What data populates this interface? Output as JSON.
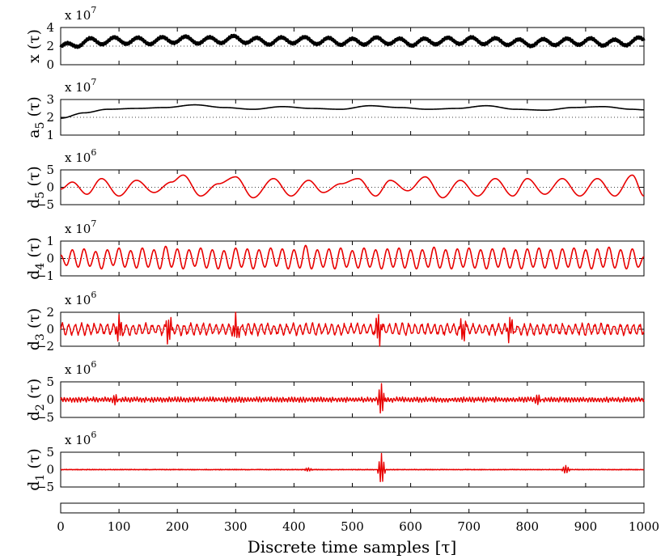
{
  "figure": {
    "xlabel": "Discrete time samples [τ]",
    "x_ticks": [
      "0",
      "100",
      "200",
      "300",
      "400",
      "500",
      "600",
      "700",
      "800",
      "900",
      "1000"
    ]
  },
  "chart_data": [
    {
      "type": "line",
      "ylabel": "x (τ)",
      "exponent": "x 10",
      "exponent_power": "7",
      "xlim": [
        0,
        1000
      ],
      "ylim": [
        0,
        4
      ],
      "yticks": [
        "4",
        "2",
        "0"
      ],
      "ytick_values": [
        4,
        2,
        0
      ],
      "dotted_ref": 2,
      "color": "#000000",
      "series": [
        {
          "x": [
            0,
            50,
            100,
            150,
            200,
            250,
            300,
            350,
            400,
            450,
            500,
            550,
            600,
            650,
            700,
            750,
            800,
            850,
            900,
            950,
            1000
          ],
          "y": [
            1.9,
            2.5,
            2.6,
            2.55,
            2.7,
            2.6,
            2.75,
            2.5,
            2.65,
            2.55,
            2.45,
            2.6,
            2.4,
            2.55,
            2.6,
            2.5,
            2.35,
            2.45,
            2.5,
            2.35,
            2.6
          ]
        }
      ]
    },
    {
      "type": "line",
      "ylabel": "a5 (τ)",
      "ylabel_main": "a",
      "ylabel_sub": "5",
      "ylabel_tail": " (τ)",
      "exponent": "x 10",
      "exponent_power": "7",
      "xlim": [
        0,
        1000
      ],
      "ylim": [
        1,
        3
      ],
      "yticks": [
        "3",
        "2",
        "1"
      ],
      "ytick_values": [
        3,
        2,
        1
      ],
      "dotted_ref": 2,
      "color": "#000000",
      "series": [
        {
          "x": [
            0,
            40,
            80,
            130,
            180,
            230,
            280,
            330,
            380,
            430,
            480,
            530,
            580,
            630,
            680,
            730,
            780,
            830,
            880,
            930,
            980,
            1000
          ],
          "y": [
            1.95,
            2.25,
            2.45,
            2.5,
            2.55,
            2.7,
            2.55,
            2.45,
            2.6,
            2.5,
            2.45,
            2.65,
            2.55,
            2.45,
            2.5,
            2.65,
            2.45,
            2.4,
            2.55,
            2.6,
            2.45,
            2.42
          ]
        }
      ]
    },
    {
      "type": "line",
      "ylabel": "d5 (τ)",
      "ylabel_main": "d",
      "ylabel_sub": "5",
      "ylabel_tail": " (τ)",
      "exponent": "x 10",
      "exponent_power": "6",
      "xlim": [
        0,
        1000
      ],
      "ylim": [
        -5,
        5
      ],
      "yticks": [
        "5",
        "0",
        "−5"
      ],
      "ytick_values": [
        5,
        0,
        -5
      ],
      "dotted_ref": 0,
      "color": "#e80000",
      "series": [
        {
          "x": [
            0,
            20,
            45,
            70,
            100,
            130,
            160,
            190,
            210,
            240,
            270,
            300,
            330,
            365,
            395,
            425,
            450,
            480,
            510,
            540,
            565,
            595,
            625,
            655,
            685,
            715,
            745,
            775,
            800,
            830,
            860,
            890,
            920,
            950,
            980,
            1000
          ],
          "y": [
            -0.5,
            1.5,
            -2,
            2.5,
            -2.5,
            2,
            -1.5,
            1.5,
            3.5,
            -2.5,
            1,
            3,
            -3,
            2.5,
            -2.5,
            2,
            -1.5,
            1,
            2.5,
            -2.5,
            2,
            -1,
            3,
            -3,
            2,
            -2.5,
            2.5,
            -2.5,
            2.5,
            -2,
            2.5,
            -2.5,
            2.5,
            -2.5,
            3.5,
            -2.5
          ]
        }
      ]
    },
    {
      "type": "line",
      "ylabel": "d4 (τ)",
      "ylabel_main": "d",
      "ylabel_sub": "4",
      "ylabel_tail": " (τ)",
      "exponent": "x 10",
      "exponent_power": "7",
      "xlim": [
        0,
        1000
      ],
      "ylim": [
        -1,
        1
      ],
      "yticks": [
        "1",
        "0",
        "−1"
      ],
      "ytick_values": [
        1,
        0,
        -1
      ],
      "dotted_ref": 0,
      "color": "#e80000",
      "series": [
        {
          "x": [
            0,
            10,
            20,
            30,
            40,
            50,
            60,
            70,
            80,
            90,
            100,
            110,
            120,
            130,
            140,
            150,
            160,
            170,
            180,
            190,
            200,
            210,
            220,
            230,
            240,
            250,
            260,
            270,
            280,
            290,
            300,
            310,
            320,
            330,
            340,
            350,
            360,
            370,
            380,
            390,
            400,
            410,
            420,
            430,
            440,
            450,
            460,
            470,
            480,
            490,
            500,
            510,
            520,
            530,
            540,
            550,
            560,
            570,
            580,
            590,
            600,
            610,
            620,
            630,
            640,
            650,
            660,
            670,
            680,
            690,
            700,
            710,
            720,
            730,
            740,
            750,
            760,
            770,
            780,
            790,
            800,
            810,
            820,
            830,
            840,
            850,
            860,
            870,
            880,
            890,
            900,
            910,
            920,
            930,
            940,
            950,
            960,
            970,
            980,
            990,
            1000
          ],
          "y": [
            0.2,
            -0.4,
            0.5,
            -0.5,
            0.55,
            -0.45,
            0.4,
            -0.6,
            0.5,
            -0.4,
            0.6,
            -0.5,
            0.45,
            -0.55,
            0.6,
            -0.5,
            0.5,
            -0.6,
            0.7,
            -0.5,
            0.55,
            -0.6,
            0.5,
            -0.45,
            0.6,
            -0.55,
            0.5,
            -0.6,
            0.45,
            -0.6,
            0.6,
            -0.5,
            0.55,
            -0.6,
            0.5,
            -0.5,
            0.6,
            -0.45,
            0.55,
            -0.6,
            0.5,
            -0.55,
            0.75,
            -0.6,
            0.5,
            -0.5,
            0.55,
            -0.6,
            0.6,
            -0.5,
            0.45,
            -0.55,
            0.6,
            -0.5,
            0.5,
            -0.6,
            0.55,
            -0.5,
            0.6,
            -0.55,
            0.5,
            -0.6,
            0.5,
            -0.5,
            0.65,
            -0.55,
            0.5,
            -0.6,
            0.55,
            -0.5,
            0.6,
            -0.55,
            0.5,
            -0.6,
            0.55,
            -0.5,
            0.6,
            -0.55,
            0.5,
            -0.6,
            0.55,
            -0.5,
            0.6,
            -0.55,
            0.5,
            -0.6,
            0.55,
            -0.5,
            0.6,
            -0.55,
            0.5,
            -0.6,
            0.55,
            -0.5,
            0.65,
            -0.55,
            0.5,
            -0.6,
            0.55,
            -0.5,
            0.1
          ]
        }
      ]
    },
    {
      "type": "line",
      "ylabel": "d3 (τ)",
      "ylabel_main": "d",
      "ylabel_sub": "3",
      "ylabel_tail": " (τ)",
      "exponent": "x 10",
      "exponent_power": "6",
      "xlim": [
        0,
        1000
      ],
      "ylim": [
        -2,
        2
      ],
      "yticks": [
        "2",
        "0",
        "−2"
      ],
      "ytick_values": [
        2,
        0,
        -2
      ],
      "dotted_ref": 0,
      "color": "#e80000",
      "noise": {
        "amplitude": 0.8,
        "period": 11,
        "spikes": [
          [
            100,
            1.4
          ],
          [
            185,
            1.6
          ],
          [
            300,
            1.5
          ],
          [
            545,
            1.9
          ],
          [
            690,
            1.3
          ],
          [
            770,
            1.4
          ]
        ]
      }
    },
    {
      "type": "line",
      "ylabel": "d2 (τ)",
      "ylabel_main": "d",
      "ylabel_sub": "2",
      "ylabel_tail": " (τ)",
      "exponent": "x 10",
      "exponent_power": "6",
      "xlim": [
        0,
        1000
      ],
      "ylim": [
        -5,
        5
      ],
      "yticks": [
        "5",
        "0",
        "−5"
      ],
      "ytick_values": [
        5,
        0,
        -5
      ],
      "dotted_ref": 0,
      "color": "#e80000",
      "noise": {
        "amplitude": 0.8,
        "period": 5,
        "spikes": [
          [
            95,
            1.4
          ],
          [
            550,
            4.5
          ],
          [
            820,
            1.3
          ]
        ]
      }
    },
    {
      "type": "line",
      "ylabel": "d1 (τ)",
      "ylabel_main": "d",
      "ylabel_sub": "1",
      "ylabel_tail": " (τ)",
      "exponent": "x 10",
      "exponent_power": "6",
      "xlim": [
        0,
        1000
      ],
      "ylim": [
        -5,
        5
      ],
      "yticks": [
        "5",
        "0",
        "−5"
      ],
      "ytick_values": [
        5,
        0,
        -5
      ],
      "dotted_ref": 0,
      "color": "#e80000",
      "noise": {
        "amplitude": 0.15,
        "period": 3,
        "spikes": [
          [
            425,
            0.6
          ],
          [
            550,
            4.5
          ],
          [
            866,
            1.3
          ]
        ]
      }
    }
  ]
}
